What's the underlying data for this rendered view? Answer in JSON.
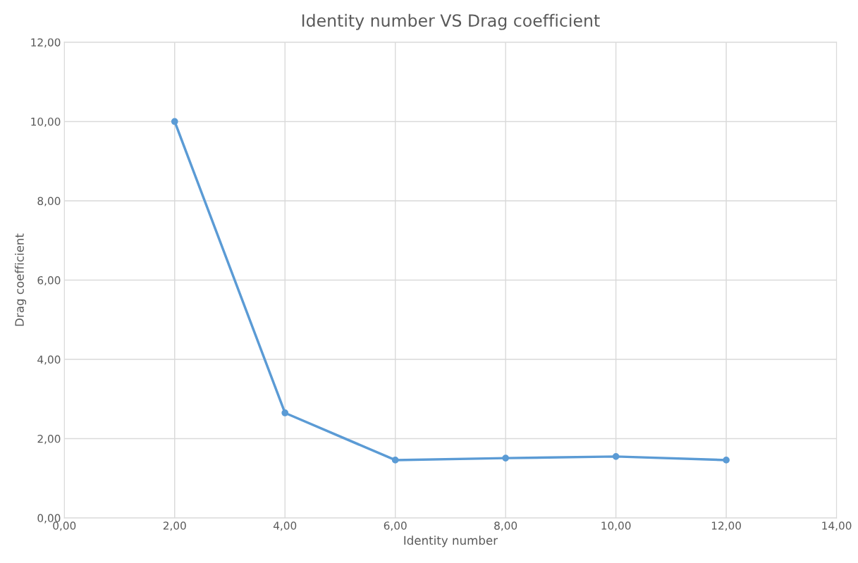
{
  "chart_data": {
    "type": "line",
    "title": "Identity number VS Drag coefficient",
    "xlabel": "Identity number",
    "ylabel": "Drag coefficient",
    "x": [
      2,
      4,
      6,
      8,
      10,
      12
    ],
    "series": [
      {
        "color": "#5b9bd5",
        "values": [
          10.0,
          2.65,
          1.46,
          1.51,
          1.55,
          1.46
        ]
      }
    ],
    "xlim": [
      0,
      14
    ],
    "ylim": [
      0,
      12
    ],
    "xticks": [
      {
        "value": 0,
        "label": "0,00"
      },
      {
        "value": 2,
        "label": "2,00"
      },
      {
        "value": 4,
        "label": "4,00"
      },
      {
        "value": 6,
        "label": "6,00"
      },
      {
        "value": 8,
        "label": "8,00"
      },
      {
        "value": 10,
        "label": "10,00"
      },
      {
        "value": 12,
        "label": "12,00"
      },
      {
        "value": 14,
        "label": "14,00"
      }
    ],
    "yticks": [
      {
        "value": 0,
        "label": "0,00"
      },
      {
        "value": 2,
        "label": "2,00"
      },
      {
        "value": 4,
        "label": "4,00"
      },
      {
        "value": 6,
        "label": "6,00"
      },
      {
        "value": 8,
        "label": "8,00"
      },
      {
        "value": 10,
        "label": "10,00"
      },
      {
        "value": 12,
        "label": "12,00"
      }
    ],
    "grid": true,
    "marker": "circle",
    "line_style": "solid",
    "legend": false
  }
}
